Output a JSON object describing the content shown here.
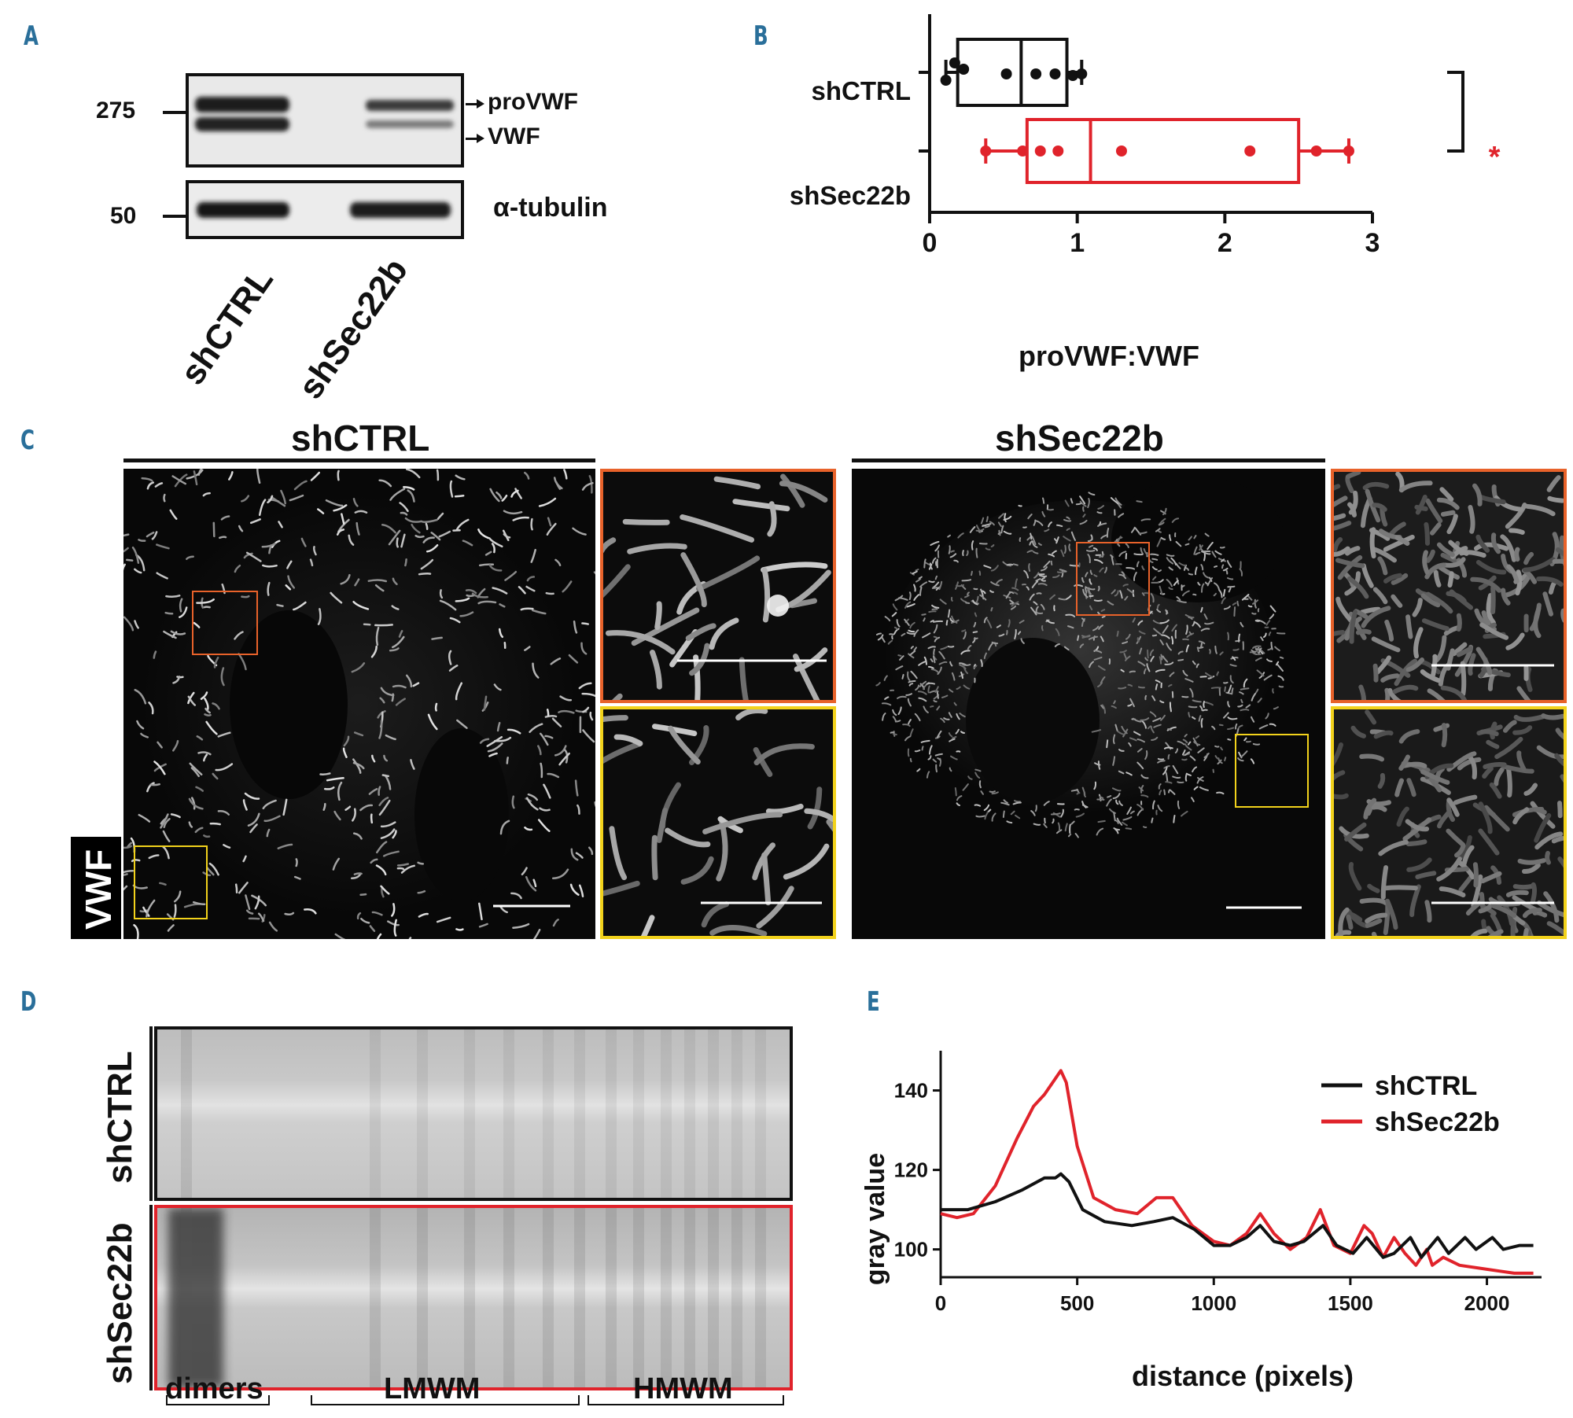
{
  "panels": {
    "a": "A",
    "b": "B",
    "c": "C",
    "d": "D",
    "e": "E"
  },
  "panel_a": {
    "markers": [
      "275",
      "50"
    ],
    "bands": [
      "proVWF",
      "VWF"
    ],
    "loading_label": "α-tubulin",
    "lanes": [
      "shCTRL",
      "shSec22b"
    ]
  },
  "panel_b": {
    "groups": [
      "shCTRL",
      "shSec22b"
    ],
    "significance": "*"
  },
  "panel_c": {
    "titles": [
      "shCTRL",
      "shSec22b"
    ],
    "stain_label": "VWF"
  },
  "panel_d": {
    "lanes": [
      "shCTRL",
      "shSec22b"
    ],
    "regions": [
      "dimers",
      "LMWM",
      "HMWM"
    ]
  },
  "colors": {
    "control": "#111111",
    "knockdown": "#e0232b",
    "inset_orange": "#e8622a",
    "inset_yellow": "#f2d21b",
    "letter": "#2a6f9a"
  },
  "chart_data": [
    {
      "type": "box",
      "panel": "B",
      "xlabel": "proVWF:VWF",
      "ylabel": "",
      "xlim": [
        0,
        3
      ],
      "xticks": [
        0,
        1,
        2,
        3
      ],
      "categories": [
        "shCTRL",
        "shSec22b"
      ],
      "series": [
        {
          "name": "shCTRL",
          "color": "#111111",
          "points": [
            0.11,
            0.17,
            0.23,
            0.52,
            0.72,
            0.85,
            0.97,
            1.03
          ],
          "whisker": [
            0.11,
            1.03
          ],
          "box": [
            0.19,
            0.93
          ],
          "median": 0.62
        },
        {
          "name": "shSec22b",
          "color": "#e0232b",
          "points": [
            0.38,
            0.63,
            0.75,
            0.87,
            1.3,
            2.17,
            2.62,
            2.84
          ],
          "whisker": [
            0.38,
            2.84
          ],
          "box": [
            0.66,
            2.5
          ],
          "median": 1.09
        }
      ],
      "annotation": "*"
    },
    {
      "type": "line",
      "panel": "E",
      "xlabel": "distance (pixels)",
      "ylabel": "gray value",
      "xlim": [
        0,
        2200
      ],
      "ylim": [
        93,
        150
      ],
      "xticks": [
        0,
        500,
        1000,
        1500,
        2000
      ],
      "yticks": [
        100,
        120,
        140
      ],
      "legend": "top-right",
      "series": [
        {
          "name": "shCTRL",
          "color": "#111111",
          "x": [
            0,
            100,
            200,
            300,
            380,
            420,
            440,
            470,
            520,
            600,
            700,
            780,
            850,
            930,
            1000,
            1060,
            1120,
            1170,
            1220,
            1280,
            1330,
            1400,
            1450,
            1510,
            1560,
            1620,
            1660,
            1720,
            1760,
            1820,
            1860,
            1920,
            1960,
            2020,
            2060,
            2120,
            2170
          ],
          "y": [
            110,
            110,
            112,
            115,
            118,
            118,
            119,
            117,
            110,
            107,
            106,
            107,
            108,
            105,
            101,
            101,
            103,
            106,
            102,
            101,
            102,
            106,
            101,
            99,
            103,
            98,
            99,
            103,
            98,
            103,
            99,
            103,
            100,
            103,
            100,
            101,
            101
          ]
        },
        {
          "name": "shSec22b",
          "color": "#e0232b",
          "x": [
            0,
            60,
            120,
            200,
            280,
            340,
            380,
            420,
            440,
            460,
            500,
            560,
            640,
            720,
            790,
            850,
            920,
            1000,
            1060,
            1120,
            1170,
            1220,
            1280,
            1340,
            1390,
            1440,
            1500,
            1550,
            1580,
            1620,
            1660,
            1700,
            1740,
            1780,
            1800,
            1840,
            1900,
            2000,
            2100,
            2170
          ],
          "y": [
            109,
            108,
            109,
            116,
            128,
            136,
            139,
            143,
            145,
            142,
            126,
            113,
            110,
            109,
            113,
            113,
            106,
            102,
            101,
            104,
            109,
            104,
            100,
            103,
            110,
            101,
            99,
            106,
            104,
            98,
            103,
            99,
            96,
            100,
            96,
            98,
            96,
            95,
            94,
            94
          ]
        }
      ]
    }
  ]
}
